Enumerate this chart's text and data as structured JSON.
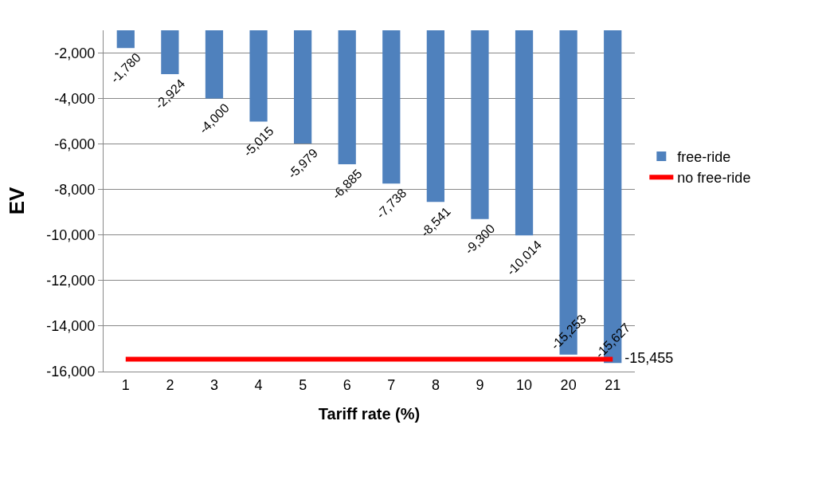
{
  "chart_data": {
    "type": "bar",
    "xlabel": "Tariff rate (%)",
    "ylabel": "EV",
    "categories": [
      "1",
      "2",
      "3",
      "4",
      "5",
      "6",
      "7",
      "8",
      "9",
      "10",
      "20",
      "21"
    ],
    "series": [
      {
        "name": "free-ride",
        "color": "#4f81bd",
        "values": [
          -1780,
          -2924,
          -4000,
          -5015,
          -5979,
          -6885,
          -7738,
          -8541,
          -9300,
          -10014,
          -15253,
          -15627
        ],
        "value_labels": [
          "-1,780",
          "-2,924",
          "-4,000",
          "-5,015",
          "-5,979",
          "-6,885",
          "-7,738",
          "-8,541",
          "-9,300",
          "-10,014",
          "-15,253",
          "-15,627"
        ]
      },
      {
        "name": "no free-ride",
        "type": "line",
        "color": "#ff0000",
        "values": [
          -15455,
          -15455,
          -15455,
          -15455,
          -15455,
          -15455,
          -15455,
          -15455,
          -15455,
          -15455,
          -15455,
          -15455
        ],
        "value_labels": [
          null,
          null,
          null,
          null,
          null,
          null,
          null,
          null,
          null,
          null,
          null,
          "-15,455"
        ]
      }
    ],
    "ylim": [
      -16000,
      -1000
    ],
    "yticks": [
      {
        "value": -2000,
        "label": "-2,000"
      },
      {
        "value": -4000,
        "label": "-4,000"
      },
      {
        "value": -6000,
        "label": "-6,000"
      },
      {
        "value": -8000,
        "label": "-8,000"
      },
      {
        "value": -10000,
        "label": "-10,000"
      },
      {
        "value": -12000,
        "label": "-12,000"
      },
      {
        "value": -14000,
        "label": "-14,000"
      },
      {
        "value": -16000,
        "label": "-16,000"
      }
    ],
    "grid": "y",
    "legend": "right",
    "marker": "none",
    "line_style": "solid"
  }
}
